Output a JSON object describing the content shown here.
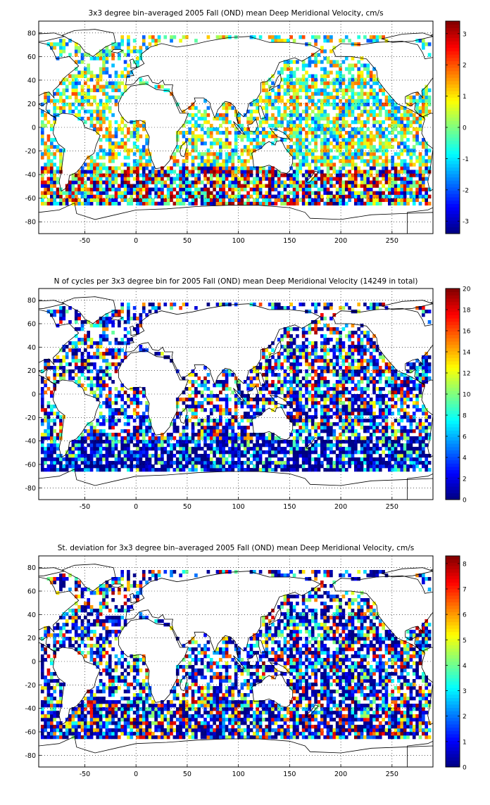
{
  "chart_data": [
    {
      "type": "heatmap",
      "title": "3x3 degree bin–averaged 2005 Fall (OND) mean Deep Meridional Velocity, cm/s",
      "xlabel": "",
      "ylabel": "",
      "xlim": [
        -95,
        290
      ],
      "ylim": [
        -90,
        90
      ],
      "x_ticks": [
        -50,
        0,
        50,
        100,
        150,
        200,
        250
      ],
      "y_ticks": [
        80,
        60,
        40,
        20,
        0,
        -20,
        -40,
        -60,
        -80
      ],
      "grid": true,
      "colorbar_range": [
        -3.4,
        3.4
      ],
      "colorbar_ticks": [
        3,
        2,
        1,
        0,
        -1,
        -2,
        -3
      ],
      "colormap": "jet",
      "field": "signed"
    },
    {
      "type": "heatmap",
      "title": "N of cycles per 3x3 degree bin for 2005 Fall (OND) mean Deep Meridional Velocity (14249 in total)",
      "xlabel": "",
      "ylabel": "",
      "xlim": [
        -95,
        290
      ],
      "ylim": [
        -90,
        90
      ],
      "x_ticks": [
        -50,
        0,
        50,
        100,
        150,
        200,
        250
      ],
      "y_ticks": [
        80,
        60,
        40,
        20,
        0,
        -20,
        -40,
        -60,
        -80
      ],
      "grid": true,
      "colorbar_range": [
        0,
        20
      ],
      "colorbar_ticks": [
        20,
        18,
        16,
        14,
        12,
        10,
        8,
        6,
        4,
        2,
        0
      ],
      "colormap": "jet",
      "field": "count"
    },
    {
      "type": "heatmap",
      "title": "St. deviation for 3x3 degree bin–averaged 2005 Fall (OND) mean Deep Meridional Velocity, cm/s",
      "xlabel": "",
      "ylabel": "",
      "xlim": [
        -95,
        290
      ],
      "ylim": [
        -90,
        90
      ],
      "x_ticks": [
        -50,
        0,
        50,
        100,
        150,
        200,
        250
      ],
      "y_ticks": [
        80,
        60,
        40,
        20,
        0,
        -20,
        -40,
        -60,
        -80
      ],
      "grid": true,
      "colorbar_range": [
        0,
        8.3
      ],
      "colorbar_ticks": [
        8,
        7,
        6,
        5,
        4,
        3,
        2,
        1,
        0
      ],
      "colormap": "jet",
      "field": "std"
    }
  ],
  "colors": {
    "frame": "#000000",
    "grid": "#000000",
    "coastline": "#000000",
    "background": "#ffffff"
  }
}
